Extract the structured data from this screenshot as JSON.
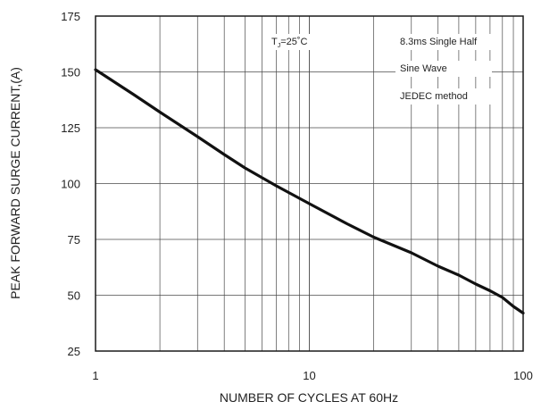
{
  "chart_data": {
    "type": "line",
    "title": "",
    "xlabel": "NUMBER OF CYCLES AT 60Hz",
    "ylabel": "PEAK FORWARD SURGE CURRENT,(A)",
    "x_scale": "log",
    "xlim": [
      1,
      100
    ],
    "ylim": [
      25,
      175
    ],
    "x_ticks": [
      1,
      10,
      100
    ],
    "x_tick_labels": [
      "1",
      "10",
      "100"
    ],
    "y_ticks": [
      25,
      50,
      75,
      100,
      125,
      150,
      175
    ],
    "y_tick_labels": [
      "25",
      "50",
      "75",
      "100",
      "125",
      "150",
      "175"
    ],
    "grid": true,
    "series": [
      {
        "name": "",
        "x": [
          1,
          1.5,
          2,
          3,
          4,
          5,
          7,
          10,
          15,
          20,
          30,
          40,
          50,
          60,
          70,
          80,
          90,
          100
        ],
        "y": [
          151,
          140,
          132,
          121,
          113,
          107,
          99,
          91,
          82,
          76,
          69,
          63,
          59,
          55,
          52,
          49,
          45,
          42
        ]
      }
    ],
    "annotations": {
      "tj_main": "T",
      "tj_sub": "J",
      "tj_rest": "=25˚C",
      "box_line1": "8.3ms Single Half",
      "box_line2": "Sine Wave",
      "box_line3": "JEDEC method"
    }
  }
}
